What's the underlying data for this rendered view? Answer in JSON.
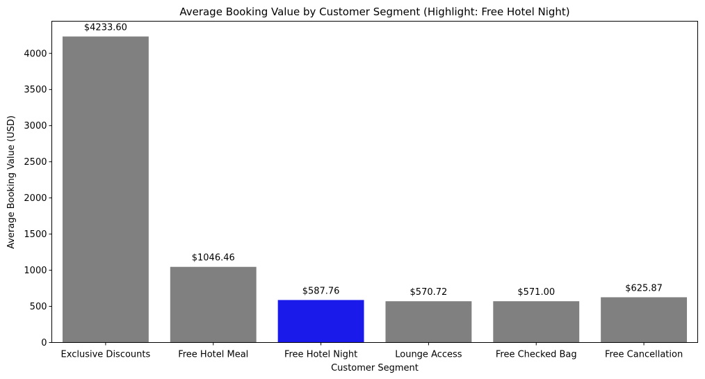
{
  "chart_data": {
    "type": "bar",
    "title": "Average Booking Value by Customer Segment (Highlight: Free Hotel Night)",
    "xlabel": "Customer Segment",
    "ylabel": "Average Booking Value (USD)",
    "ylim": [
      0,
      4445
    ],
    "yticks": [
      0,
      500,
      1000,
      1500,
      2000,
      2500,
      3000,
      3500,
      4000
    ],
    "grid": false,
    "categories": [
      "Exclusive Discounts",
      "Free Hotel Meal",
      "Free Hotel Night",
      "Lounge Access",
      "Free Checked Bag",
      "Free Cancellation"
    ],
    "values": [
      4233.6,
      1046.46,
      587.76,
      570.72,
      571.0,
      625.87
    ],
    "data_labels": [
      "$4233.60",
      "$1046.46",
      "$587.76",
      "$570.72",
      "$571.00",
      "$625.87"
    ],
    "highlight_category": "Free Hotel Night",
    "colors": {
      "bar": "#808080",
      "highlight": "#1a1aeb",
      "axis": "#000000"
    }
  }
}
